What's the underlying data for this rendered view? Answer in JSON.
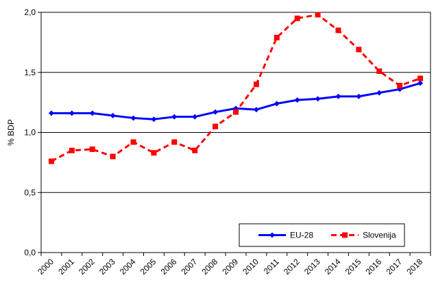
{
  "chart_data": {
    "type": "line",
    "categories": [
      "2000",
      "2001",
      "2002",
      "2003",
      "2004",
      "2005",
      "2006",
      "2007",
      "2008",
      "2009",
      "2010",
      "2011",
      "2012",
      "2013",
      "2014",
      "2015",
      "2016",
      "2017",
      "2018"
    ],
    "series": [
      {
        "name": "EU-28",
        "color": "#0000FF",
        "values": [
          1.16,
          1.16,
          1.16,
          1.14,
          1.12,
          1.11,
          1.13,
          1.13,
          1.17,
          1.2,
          1.19,
          1.24,
          1.27,
          1.28,
          1.3,
          1.3,
          1.33,
          1.36,
          1.41
        ]
      },
      {
        "name": "Slovenija",
        "color": "#FF0000",
        "values": [
          0.76,
          0.85,
          0.86,
          0.8,
          0.92,
          0.83,
          0.92,
          0.85,
          1.05,
          1.17,
          1.4,
          1.79,
          1.95,
          1.98,
          1.85,
          1.69,
          1.51,
          1.39,
          1.45
        ]
      }
    ],
    "ylabel": "% BDP",
    "ylim": [
      0,
      2
    ],
    "yticks": [
      "0,0",
      "0,5",
      "1,0",
      "1,5",
      "2,0"
    ],
    "grid": true,
    "legend": "bottom-right"
  }
}
